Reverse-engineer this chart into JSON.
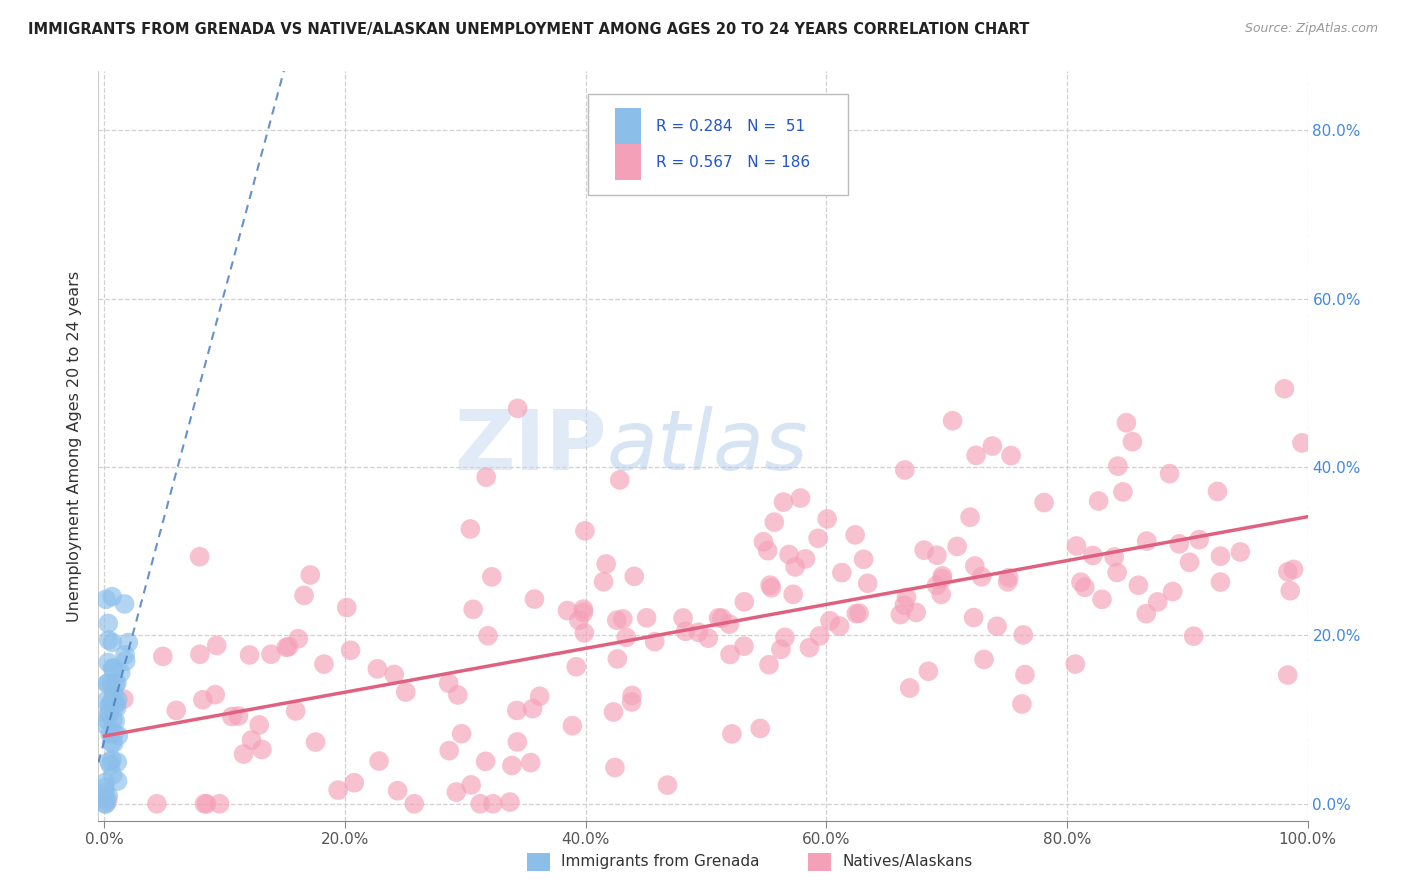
{
  "title": "IMMIGRANTS FROM GRENADA VS NATIVE/ALASKAN UNEMPLOYMENT AMONG AGES 20 TO 24 YEARS CORRELATION CHART",
  "source": "Source: ZipAtlas.com",
  "ylabel": "Unemployment Among Ages 20 to 24 years",
  "xlim": [
    -0.005,
    1.0
  ],
  "ylim": [
    -0.02,
    0.87
  ],
  "xticks": [
    0.0,
    0.2,
    0.4,
    0.6,
    0.8,
    1.0
  ],
  "xticklabels": [
    "0.0%",
    "20.0%",
    "40.0%",
    "60.0%",
    "80.0%",
    "100.0%"
  ],
  "ytick_positions": [
    0.0,
    0.2,
    0.4,
    0.6,
    0.8
  ],
  "yticklabels_right": [
    "0.0%",
    "20.0%",
    "40.0%",
    "60.0%",
    "80.0%"
  ],
  "watermark_zip": "ZIP",
  "watermark_atlas": "atlas",
  "legend_R1": "R = 0.284",
  "legend_N1": "N =  51",
  "legend_R2": "R = 0.567",
  "legend_N2": "N = 186",
  "color_blue": "#8bbfea",
  "color_pink": "#f4a0b8",
  "color_blue_line": "#4a7fc0",
  "color_pink_line": "#e06080",
  "R1": 0.284,
  "N1": 51,
  "R2": 0.567,
  "N2": 186,
  "seed1": 42,
  "seed2": 123
}
